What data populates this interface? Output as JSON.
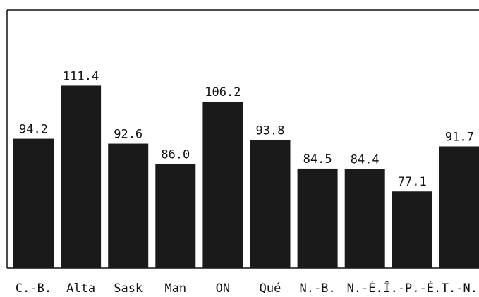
{
  "chart_data": {
    "type": "bar",
    "categories": [
      "C.-B.",
      "Alta",
      "Sask",
      "Man",
      "ON",
      "Qué",
      "N.-B.",
      "N.-É.",
      "Î.-P.-É.",
      "T.-N."
    ],
    "values": [
      94.2,
      111.4,
      92.6,
      86.0,
      106.2,
      93.8,
      84.5,
      84.4,
      77.1,
      91.7
    ],
    "value_labels": [
      "94.2",
      "111.4",
      "92.6",
      "86.0",
      "106.2",
      "93.8",
      "84.5",
      "84.4",
      "77.1",
      "91.7"
    ],
    "color": "#1a1a1a",
    "ylim": [
      52.2,
      136
    ],
    "grid": false
  }
}
